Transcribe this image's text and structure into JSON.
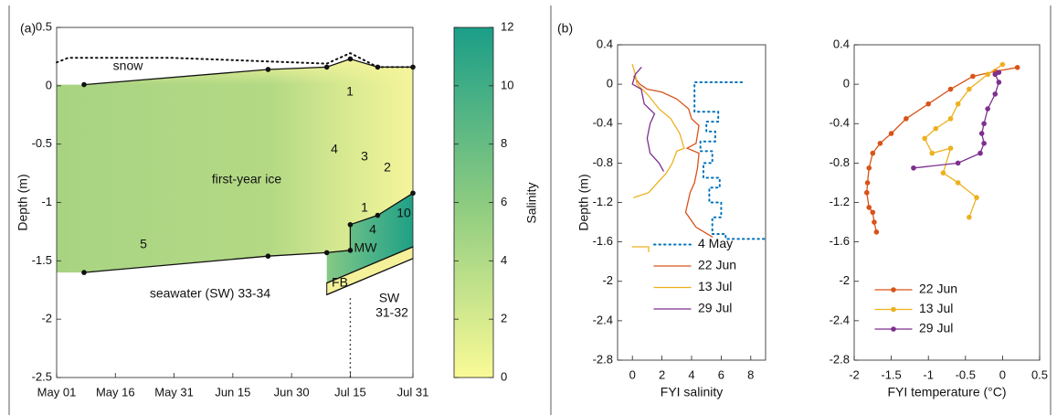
{
  "chart_data": [
    {
      "type": "contour",
      "panel_label": "(a)",
      "ylabel": "Depth (m)",
      "xlim": [
        121,
        212
      ],
      "xticks": [
        {
          "value": 121,
          "label": "May 01"
        },
        {
          "value": 136,
          "label": "May 16"
        },
        {
          "value": 151,
          "label": "May 31"
        },
        {
          "value": 166,
          "label": "Jun 15"
        },
        {
          "value": 181,
          "label": "Jun 30"
        },
        {
          "value": 196,
          "label": "Jul 15"
        },
        {
          "value": 212,
          "label": "Jul 31"
        }
      ],
      "ylim": [
        -2.5,
        0.5
      ],
      "yticks": [
        -2.5,
        -2,
        -1.5,
        -1,
        -0.5,
        0,
        0.5
      ],
      "boundaries": [
        {
          "style": "dotted",
          "color": "#111111",
          "x": [
            121,
            124,
            150,
            190,
            196,
            203,
            212
          ],
          "values": [
            0.2,
            0.24,
            0.24,
            0.19,
            0.28,
            0.16,
            0.16
          ]
        },
        {
          "style": "solid",
          "markers": true,
          "color": "#111111",
          "x": [
            128,
            175,
            190,
            196,
            203,
            212
          ],
          "values": [
            0.01,
            0.14,
            0.16,
            0.23,
            0.16,
            0.16
          ]
        },
        {
          "style": "solid",
          "markers": true,
          "color": "#111111",
          "x": [
            128,
            175,
            190,
            196,
            196,
            203,
            212
          ],
          "values": [
            -1.6,
            -1.46,
            -1.43,
            -1.41,
            -1.19,
            -1.11,
            -0.92
          ]
        },
        {
          "style": "solid",
          "color": "#111111",
          "x": [
            190,
            212
          ],
          "values": [
            -1.69,
            -1.38
          ]
        },
        {
          "style": "solid",
          "color": "#111111",
          "x": [
            190,
            212
          ],
          "values": [
            -1.79,
            -1.48
          ]
        }
      ],
      "vline_x": 196,
      "annotations": [
        "snow",
        "1",
        "4",
        "3",
        "2",
        "first-year ice",
        "5",
        "1",
        "4",
        "10",
        "MW",
        "FB",
        "seawater (SW) 33-34",
        "SW",
        "31-32"
      ],
      "colorbar": {
        "label": "Salinity",
        "lim": [
          0,
          12
        ],
        "ticks": [
          0,
          2,
          4,
          6,
          8,
          10,
          12
        ],
        "colors": [
          "#fafa96",
          "#8ccb80",
          "#1b9e88"
        ]
      }
    },
    {
      "type": "line",
      "panel_label": "(b)",
      "ylabel": "Depth (m)",
      "xlabel": "FYI salinity",
      "xlim": [
        -1,
        9
      ],
      "xticks": [
        0,
        2,
        4,
        6,
        8
      ],
      "ylim": [
        -2.8,
        0.4
      ],
      "yticks": [
        -2.8,
        -2.4,
        -2,
        -1.6,
        -1.2,
        -0.8,
        -0.4,
        0,
        0.4
      ],
      "legend": "lower center",
      "series": [
        {
          "name": "4 May",
          "color": "#0072bd",
          "style": "dotted",
          "x": [
            7.4,
            4.2,
            4.2,
            5.8,
            5.8,
            5.0,
            5.0,
            5.6,
            5.6,
            4.6,
            4.6,
            5.4,
            5.4,
            4.8,
            4.8,
            5.9,
            5.9,
            5.2,
            5.2,
            6.0,
            6.0,
            5.4,
            5.4,
            6.3,
            6.3,
            9
          ],
          "values": [
            0.02,
            0.02,
            -0.28,
            -0.28,
            -0.38,
            -0.38,
            -0.48,
            -0.48,
            -0.58,
            -0.58,
            -0.68,
            -0.68,
            -0.8,
            -0.8,
            -0.95,
            -0.95,
            -1.05,
            -1.05,
            -1.2,
            -1.2,
            -1.35,
            -1.35,
            -1.52,
            -1.52,
            -1.57,
            -1.57
          ]
        },
        {
          "name": "22 Jun",
          "color": "#d95319",
          "style": "solid",
          "x": [
            0.1,
            0.5,
            1,
            2,
            3,
            3.8,
            4,
            4.5,
            4.3,
            3.7,
            4.5,
            4.4,
            4.2,
            3.9,
            3.6,
            4.3,
            5.4
          ],
          "values": [
            0.08,
            0,
            -0.05,
            -0.08,
            -0.15,
            -0.25,
            -0.35,
            -0.42,
            -0.6,
            -0.65,
            -0.7,
            -0.85,
            -1.0,
            -1.1,
            -1.3,
            -1.45,
            -1.55
          ]
        },
        {
          "name": "13 Jul",
          "color": "#edb120",
          "style": "solid",
          "x": [
            0,
            0.2,
            0.3,
            1,
            1.8,
            2.6,
            3.2,
            3.5,
            3,
            2.7,
            2.3,
            1.7,
            1.1,
            0.1,
            null,
            0,
            1.1,
            1.1
          ],
          "values": [
            0.2,
            0.1,
            0,
            -0.1,
            -0.25,
            -0.35,
            -0.5,
            -0.65,
            -0.68,
            -0.8,
            -0.9,
            -1.0,
            -1.1,
            -1.15,
            null,
            -1.65,
            -1.65,
            -1.7
          ]
        },
        {
          "name": "29 Jul",
          "color": "#7e2f8e",
          "style": "solid",
          "x": [
            0.6,
            0.2,
            0,
            0.6,
            0.8,
            1.5,
            1.2,
            1.0,
            1.2,
            1.8,
            2.1
          ],
          "values": [
            0.17,
            0.1,
            0,
            -0.05,
            -0.2,
            -0.3,
            -0.4,
            -0.55,
            -0.7,
            -0.8,
            -0.88
          ]
        }
      ]
    },
    {
      "type": "line",
      "xlabel": "FYI temperature (°C)",
      "xlim": [
        -2,
        0.5
      ],
      "xticks": [
        -2,
        -1.5,
        -1,
        -0.5,
        0,
        0.5
      ],
      "ylim": [
        -2.8,
        0.4
      ],
      "yticks": [
        -2.8,
        -2.4,
        -2,
        -1.6,
        -1.2,
        -0.8,
        -0.4,
        0,
        0.4
      ],
      "legend": "lower center",
      "series": [
        {
          "name": "22 Jun",
          "color": "#d95319",
          "style": "solid",
          "markers": true,
          "x": [
            0.2,
            -0.1,
            -0.4,
            -0.7,
            -1.0,
            -1.3,
            -1.5,
            -1.65,
            -1.75,
            -1.8,
            -1.82,
            -1.83,
            -1.8,
            -1.75,
            -1.73,
            -1.7
          ],
          "values": [
            0.17,
            0.13,
            0.08,
            -0.05,
            -0.2,
            -0.35,
            -0.5,
            -0.6,
            -0.7,
            -0.85,
            -1.0,
            -1.1,
            -1.25,
            -1.3,
            -1.4,
            -1.5
          ]
        },
        {
          "name": "13 Jul",
          "color": "#edb120",
          "style": "solid",
          "markers": true,
          "x": [
            0.0,
            -0.2,
            -0.45,
            -0.6,
            -0.7,
            -0.9,
            -1.05,
            -0.95,
            -0.7,
            -0.8,
            -0.6,
            -0.35,
            -0.45
          ],
          "values": [
            0.2,
            0.1,
            -0.05,
            -0.2,
            -0.35,
            -0.45,
            -0.55,
            -0.7,
            -0.65,
            -0.9,
            -1.0,
            -1.15,
            -1.35
          ]
        },
        {
          "name": "29 Jul",
          "color": "#7e2f8e",
          "style": "solid",
          "markers": true,
          "x": [
            -0.05,
            -0.1,
            -0.05,
            -0.1,
            -0.2,
            -0.25,
            -0.28,
            -0.25,
            -0.3,
            -0.6,
            -1.2
          ],
          "values": [
            0.12,
            0.1,
            0.02,
            -0.1,
            -0.25,
            -0.4,
            -0.5,
            -0.6,
            -0.7,
            -0.8,
            -0.85
          ]
        }
      ]
    }
  ]
}
